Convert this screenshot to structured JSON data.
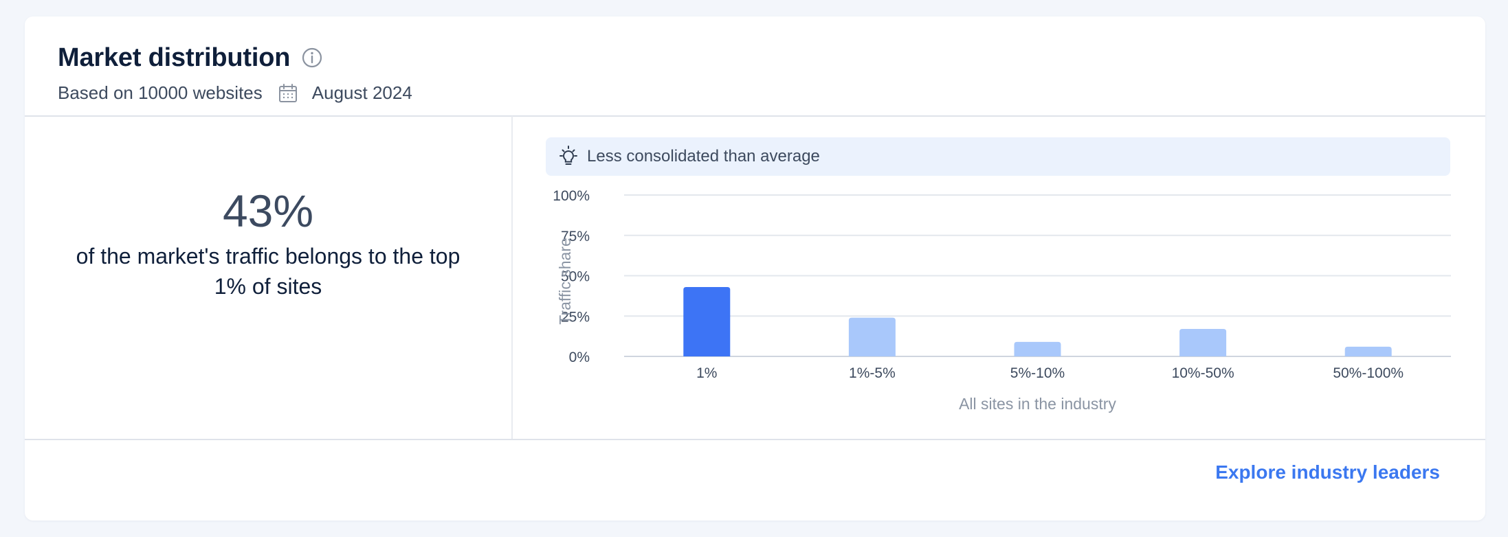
{
  "header": {
    "title": "Market distribution",
    "subtitle_basis": "Based on 10000 websites",
    "date": "August 2024",
    "info_icon": "info-icon",
    "calendar_icon": "calendar-icon"
  },
  "summary": {
    "value": "43%",
    "description": "of the market's traffic belongs to the top 1% of sites"
  },
  "insight": {
    "icon": "lightbulb-icon",
    "text": "Less consolidated than average"
  },
  "colors": {
    "highlight_bar": "#3d74f5",
    "other_bars": "#a9c8fb",
    "link": "#3b78f0"
  },
  "footer": {
    "link_label": "Explore industry leaders"
  },
  "chart_data": {
    "type": "bar",
    "categories": [
      "1%",
      "1%-5%",
      "5%-10%",
      "10%-50%",
      "50%-100%"
    ],
    "values": [
      43,
      24,
      9,
      17,
      6
    ],
    "highlight_index": 0,
    "xlabel": "All sites in the industry",
    "ylabel": "Traffic share",
    "ylim": [
      0,
      100
    ],
    "yticks": [
      0,
      25,
      50,
      75,
      100
    ],
    "ytick_labels": [
      "0%",
      "25%",
      "50%",
      "75%",
      "100%"
    ],
    "grid": true
  }
}
